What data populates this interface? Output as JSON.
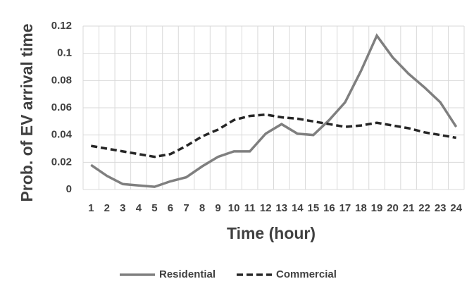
{
  "chart_data": {
    "type": "line",
    "x_label": "Time (hour)",
    "y_label": "Prob. of EV arrival time",
    "categories": [
      "1",
      "2",
      "3",
      "4",
      "5",
      "6",
      "7",
      "8",
      "9",
      "10",
      "11",
      "12",
      "13",
      "14",
      "15",
      "16",
      "17",
      "18",
      "19",
      "20",
      "21",
      "22",
      "23",
      "24"
    ],
    "series": [
      {
        "name": "Residential",
        "color": "#7f7f7f",
        "line_style": "solid",
        "values": [
          0.018,
          0.01,
          0.004,
          0.003,
          0.002,
          0.006,
          0.009,
          0.017,
          0.024,
          0.028,
          0.028,
          0.041,
          0.048,
          0.041,
          0.04,
          0.051,
          0.064,
          0.087,
          0.113,
          0.097,
          0.085,
          0.075,
          0.064,
          0.046
        ]
      },
      {
        "name": "Commercial",
        "color": "#262626",
        "line_style": "dashed",
        "values": [
          0.032,
          0.03,
          0.028,
          0.026,
          0.024,
          0.026,
          0.032,
          0.039,
          0.044,
          0.051,
          0.054,
          0.055,
          0.053,
          0.052,
          0.05,
          0.048,
          0.046,
          0.047,
          0.049,
          0.047,
          0.045,
          0.042,
          0.04,
          0.038
        ]
      }
    ],
    "ylim": [
      0,
      0.12
    ],
    "yticks": [
      0,
      0.02,
      0.04,
      0.06,
      0.08,
      0.1,
      0.12
    ],
    "grid": true,
    "legend": "bottom"
  }
}
